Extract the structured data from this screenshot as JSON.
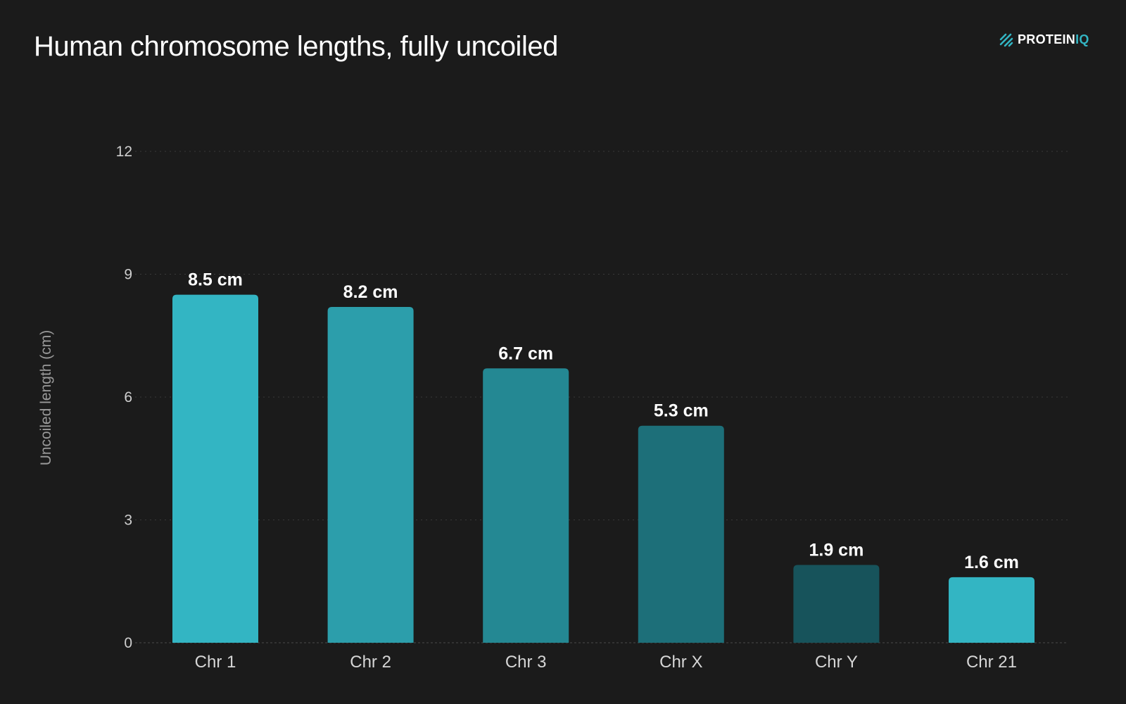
{
  "title": "Human chromosome lengths, fully uncoiled",
  "logo": {
    "prefix": "PROTEIN",
    "suffix": "IQ",
    "icon": "proteiniq-logo-icon",
    "accent_color": "#33b5c3"
  },
  "chart_data": {
    "type": "bar",
    "categories": [
      "Chr 1",
      "Chr 2",
      "Chr 3",
      "Chr X",
      "Chr Y",
      "Chr 21"
    ],
    "values": [
      8.5,
      8.2,
      6.7,
      5.3,
      1.9,
      1.6
    ],
    "value_labels": [
      "8.5 cm",
      "8.2 cm",
      "6.7 cm",
      "5.3 cm",
      "1.9 cm",
      "1.6 cm"
    ],
    "bar_colors": [
      "#33b5c3",
      "#2c9eab",
      "#248893",
      "#1d6f79",
      "#17535b",
      "#33b5c3"
    ],
    "title": "Human chromosome lengths, fully uncoiled",
    "xlabel": "",
    "ylabel": "Uncoiled length (cm)",
    "ylim": [
      0,
      12
    ],
    "yticks": [
      0,
      3,
      6,
      9,
      12
    ],
    "grid": true,
    "legend": "none"
  }
}
